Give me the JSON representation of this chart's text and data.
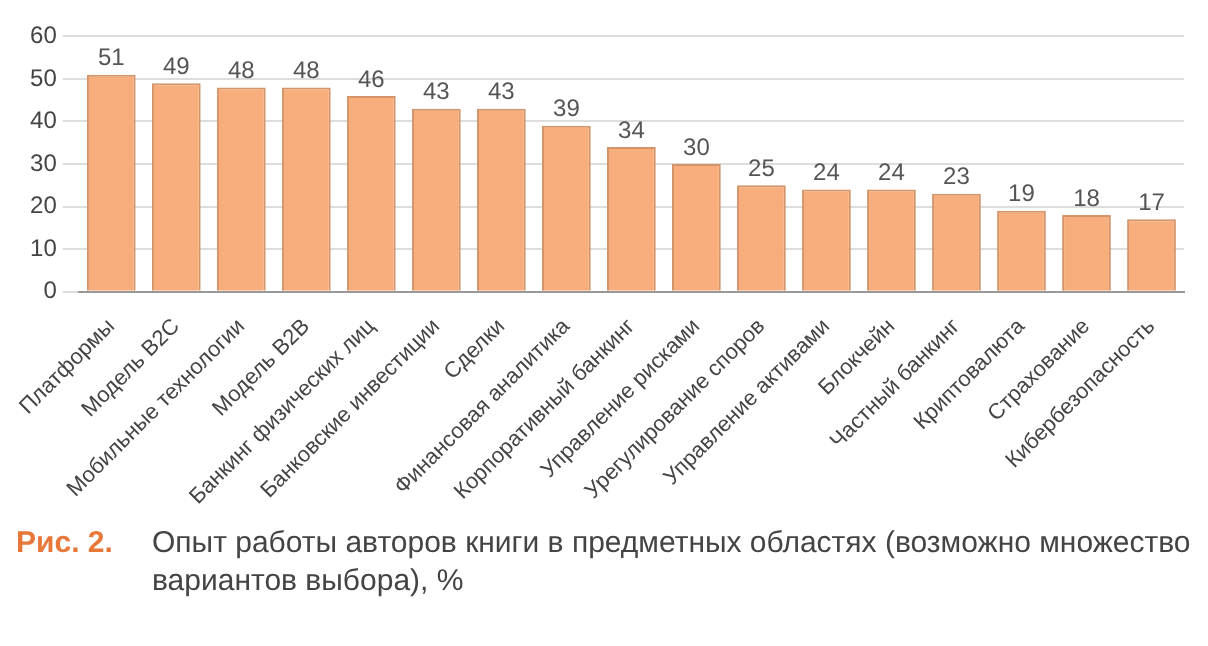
{
  "chart_data": {
    "type": "bar",
    "categories": [
      "Платформы",
      "Модель B2C",
      "Мобильные технологии",
      "Модель B2B",
      "Банкинг физических лиц",
      "Банковские инвестиции",
      "Сделки",
      "Финансовая аналитика",
      "Корпоративный банкинг",
      "Управление рисками",
      "Урегулирование споров",
      "Управление активами",
      "Блокчейн",
      "Частный банкинг",
      "Криптовалюта",
      "Страхование",
      "Кибербезопасность"
    ],
    "values": [
      51,
      49,
      48,
      48,
      46,
      43,
      43,
      39,
      34,
      30,
      25,
      24,
      24,
      23,
      19,
      18,
      17
    ],
    "color": "#f8ae7c",
    "ylim": [
      0,
      60
    ],
    "yticks": [
      0,
      10,
      20,
      30,
      40,
      50,
      60
    ],
    "grid": "y",
    "data_labels": true,
    "legend": false,
    "annotations": [
      "Рис. 2.",
      "Опыт работы авторов книги в предметных областях (возможно множество вариантов выбора), %"
    ]
  }
}
